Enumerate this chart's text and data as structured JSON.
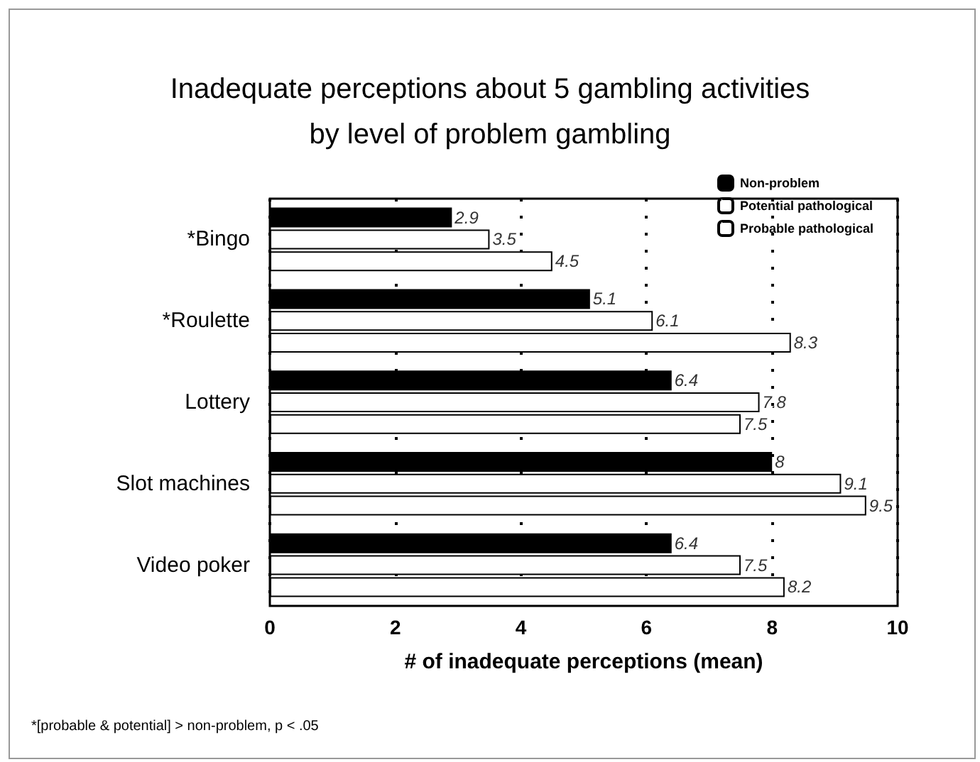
{
  "chart_data": {
    "type": "bar",
    "orientation": "horizontal",
    "title": "Inadequate perceptions about 5 gambling activities\nby level of problem gambling",
    "xlabel": "# of inadequate perceptions (mean)",
    "categories": [
      "*Bingo",
      "*Roulette",
      "Lottery",
      "Slot machines",
      "Video poker"
    ],
    "series": [
      {
        "name": "Non-problem",
        "color": "#000000",
        "values": [
          2.9,
          5.1,
          6.4,
          8,
          6.4
        ]
      },
      {
        "name": "Potential pathological",
        "color": "#ffffff",
        "values": [
          3.5,
          6.1,
          7.8,
          9.1,
          7.5
        ]
      },
      {
        "name": "Probable pathological",
        "color": "#ffffff",
        "values": [
          4.5,
          8.3,
          7.5,
          9.5,
          8.2
        ]
      }
    ],
    "xlim": [
      0,
      10
    ],
    "xticks": [
      0,
      2,
      4,
      6,
      8,
      10
    ],
    "grid": "x",
    "legend": "top right",
    "data_labels": true,
    "annotations": [
      "*[probable & potential] > non-problem, p < .05"
    ]
  }
}
